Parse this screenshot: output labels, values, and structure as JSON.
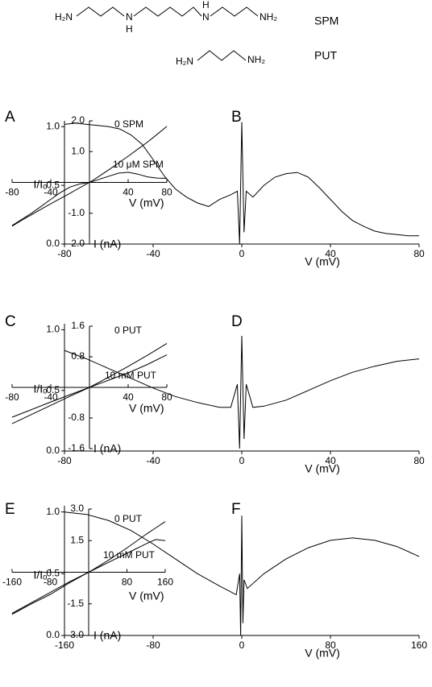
{
  "structures": [
    {
      "name": "SPM",
      "atoms": [
        "H₂N",
        "N",
        "H",
        "N",
        "H",
        "NH₂"
      ]
    },
    {
      "name": "PUT",
      "atoms": [
        "H₂N",
        "NH₂"
      ]
    }
  ],
  "chart_data": [
    {
      "type": "line",
      "panel": "A",
      "xlabel": "V (mV)",
      "ylabel": "I (nA)",
      "xlim": [
        -80,
        80
      ],
      "ylim": [
        -2,
        2
      ],
      "xticks": [
        -80,
        -40,
        40,
        80
      ],
      "yticks": [
        {
          "value": 2,
          "label": "2.0"
        },
        {
          "value": 1,
          "label": "1.0"
        },
        {
          "value": -1,
          "label": "-1.0"
        },
        {
          "value": -2,
          "label": "-2.0"
        }
      ],
      "x": [
        -80,
        -70,
        -60,
        -50,
        -40,
        -30,
        -20,
        -10,
        0,
        10,
        20,
        30,
        40,
        50,
        60,
        70,
        80
      ],
      "series": [
        {
          "name": "0 SPM",
          "color": "#000000",
          "values": [
            -1.42,
            -1.23,
            -1.05,
            -0.87,
            -0.69,
            -0.52,
            -0.35,
            -0.17,
            0,
            0.2,
            0.41,
            0.63,
            0.85,
            1.08,
            1.31,
            1.56,
            1.82
          ]
        },
        {
          "name": "10 μM SPM",
          "color": "#000000",
          "values": [
            -1.4,
            -1.2,
            -1.0,
            -0.78,
            -0.55,
            -0.33,
            -0.15,
            -0.05,
            0,
            0.1,
            0.2,
            0.3,
            0.33,
            0.27,
            0.18,
            0.14,
            0.13
          ]
        }
      ]
    },
    {
      "type": "line",
      "panel": "B",
      "xlabel": "V (mV)",
      "ylabel": "I/Iₒ",
      "xlim": [
        -80,
        80
      ],
      "ylim": [
        0,
        1.05
      ],
      "xticks": [
        -80,
        -40,
        0,
        40,
        80
      ],
      "yticks": [
        {
          "value": 0,
          "label": "0.0"
        },
        0.5,
        {
          "value": 1,
          "label": "1.0"
        }
      ],
      "x": [
        -80,
        -75,
        -70,
        -65,
        -60,
        -55,
        -50,
        -45,
        -40,
        -35,
        -30,
        -25,
        -20,
        -15,
        -10,
        -5,
        -2,
        -1,
        0,
        1,
        2,
        5,
        10,
        15,
        20,
        25,
        30,
        35,
        40,
        45,
        50,
        55,
        60,
        65,
        70,
        75,
        80
      ],
      "series": [
        {
          "color": "#000000",
          "values": [
            1.02,
            1.03,
            1.02,
            1.01,
            1.0,
            0.98,
            0.93,
            0.85,
            0.72,
            0.58,
            0.47,
            0.4,
            0.35,
            0.32,
            0.38,
            0.42,
            0.45,
            0.0,
            1.04,
            0.1,
            0.45,
            0.4,
            0.5,
            0.57,
            0.6,
            0.61,
            0.57,
            0.48,
            0.38,
            0.28,
            0.2,
            0.15,
            0.11,
            0.09,
            0.08,
            0.07,
            0.07
          ]
        }
      ]
    },
    {
      "type": "line",
      "panel": "C",
      "xlabel": "V (mV)",
      "ylabel": "I (nA)",
      "xlim": [
        -80,
        80
      ],
      "ylim": [
        -1.6,
        1.6
      ],
      "xticks": [
        -80,
        -40,
        40,
        80
      ],
      "yticks": [
        1.6,
        0.8,
        -0.8,
        -1.6
      ],
      "x": [
        -80,
        -60,
        -40,
        -20,
        0,
        20,
        40,
        60,
        80
      ],
      "series": [
        {
          "name": "0 PUT",
          "color": "#000000",
          "values": [
            -0.95,
            -0.71,
            -0.47,
            -0.23,
            0,
            0.27,
            0.55,
            0.84,
            1.15
          ]
        },
        {
          "name": "10 mM PUT",
          "color": "#000000",
          "values": [
            -0.78,
            -0.58,
            -0.38,
            -0.19,
            0,
            0.19,
            0.38,
            0.6,
            0.85
          ]
        }
      ]
    },
    {
      "type": "line",
      "panel": "D",
      "xlabel": "V (mV)",
      "ylabel": "I/Iₒ",
      "xlim": [
        -80,
        80
      ],
      "ylim": [
        0,
        1.05
      ],
      "xticks": [
        -80,
        -40,
        0,
        40,
        80
      ],
      "yticks": [
        {
          "value": 0,
          "label": "0.0"
        },
        0.5,
        {
          "value": 1,
          "label": "1.0"
        }
      ],
      "x": [
        -80,
        -70,
        -60,
        -50,
        -40,
        -30,
        -20,
        -10,
        -5,
        -2,
        -1,
        0,
        1,
        2,
        5,
        10,
        20,
        30,
        40,
        50,
        60,
        70,
        80
      ],
      "series": [
        {
          "color": "#000000",
          "values": [
            0.83,
            0.76,
            0.68,
            0.6,
            0.52,
            0.45,
            0.4,
            0.36,
            0.36,
            0.55,
            0.02,
            0.95,
            0.1,
            0.55,
            0.36,
            0.37,
            0.42,
            0.5,
            0.58,
            0.65,
            0.7,
            0.74,
            0.76
          ]
        }
      ]
    },
    {
      "type": "line",
      "panel": "E",
      "xlabel": "V (mV)",
      "ylabel": "I (nA)",
      "xlim": [
        -160,
        160
      ],
      "ylim": [
        -3,
        3
      ],
      "xticks": [
        -160,
        -80,
        80,
        160
      ],
      "yticks": [
        {
          "value": 3,
          "label": "3.0"
        },
        1.5,
        -1.5,
        {
          "value": -3,
          "label": "-3.0"
        }
      ],
      "x": [
        -160,
        -120,
        -80,
        -40,
        0,
        40,
        80,
        120,
        140,
        160
      ],
      "series": [
        {
          "name": "0 PUT",
          "color": "#000000",
          "values": [
            -2.0,
            -1.5,
            -1.05,
            -0.5,
            0,
            0.55,
            1.15,
            1.8,
            2.1,
            2.4
          ]
        },
        {
          "name": "10 mM PUT",
          "color": "#000000",
          "values": [
            -1.95,
            -1.45,
            -0.95,
            -0.45,
            0,
            0.45,
            0.9,
            1.35,
            1.55,
            1.5
          ]
        }
      ]
    },
    {
      "type": "line",
      "panel": "F",
      "xlabel": "V (mV)",
      "ylabel": "I/Iₒ",
      "xlim": [
        -160,
        160
      ],
      "ylim": [
        0,
        1.05
      ],
      "xticks": [
        -160,
        -80,
        0,
        80,
        160
      ],
      "yticks": [
        {
          "value": 0,
          "label": "0.0"
        },
        0.5,
        {
          "value": 1,
          "label": "1.0"
        }
      ],
      "x": [
        -160,
        -140,
        -120,
        -100,
        -80,
        -60,
        -40,
        -20,
        -5,
        -2,
        -1,
        0,
        1,
        2,
        5,
        20,
        40,
        60,
        80,
        100,
        120,
        140,
        160
      ],
      "series": [
        {
          "color": "#000000",
          "values": [
            1.0,
            0.98,
            0.93,
            0.85,
            0.74,
            0.62,
            0.5,
            0.4,
            0.33,
            0.5,
            0.0,
            0.97,
            0.1,
            0.45,
            0.38,
            0.5,
            0.62,
            0.71,
            0.77,
            0.79,
            0.77,
            0.72,
            0.64
          ]
        }
      ]
    }
  ]
}
